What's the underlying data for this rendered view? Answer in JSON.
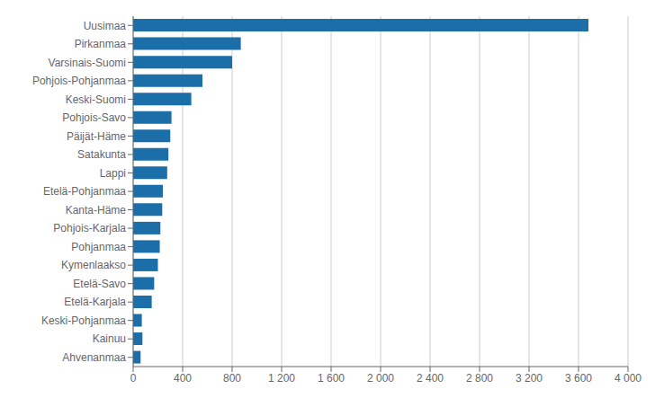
{
  "chart_data": {
    "type": "bar",
    "orientation": "horizontal",
    "categories": [
      "Uusimaa",
      "Pirkanmaa",
      "Varsinais-Suomi",
      "Pohjois-Pohjanmaa",
      "Keski-Suomi",
      "Pohjois-Savo",
      "Päijät-Häme",
      "Satakunta",
      "Lappi",
      "Etelä-Pohjanmaa",
      "Kanta-Häme",
      "Pohjois-Karjala",
      "Pohjanmaa",
      "Kymenlaakso",
      "Etelä-Savo",
      "Etelä-Karjala",
      "Keski-Pohjanmaa",
      "Kainuu",
      "Ahvenanmaa"
    ],
    "values": [
      3680,
      870,
      800,
      560,
      470,
      310,
      300,
      285,
      275,
      240,
      235,
      220,
      215,
      200,
      170,
      150,
      70,
      75,
      60
    ],
    "color": "#1b6ea8",
    "xlim": [
      0,
      4000
    ],
    "xticks": [
      0,
      400,
      800,
      {
        "value": 1200,
        "label": "1 200"
      },
      {
        "value": 1600,
        "label": "1 600"
      },
      {
        "value": 2000,
        "label": "2 000"
      },
      {
        "value": 2400,
        "label": "2 400"
      },
      {
        "value": 2800,
        "label": "2 800"
      },
      {
        "value": 3200,
        "label": "3 200"
      },
      {
        "value": 3600,
        "label": "3 600"
      },
      {
        "value": 4000,
        "label": "4 000"
      }
    ],
    "grid": true
  }
}
